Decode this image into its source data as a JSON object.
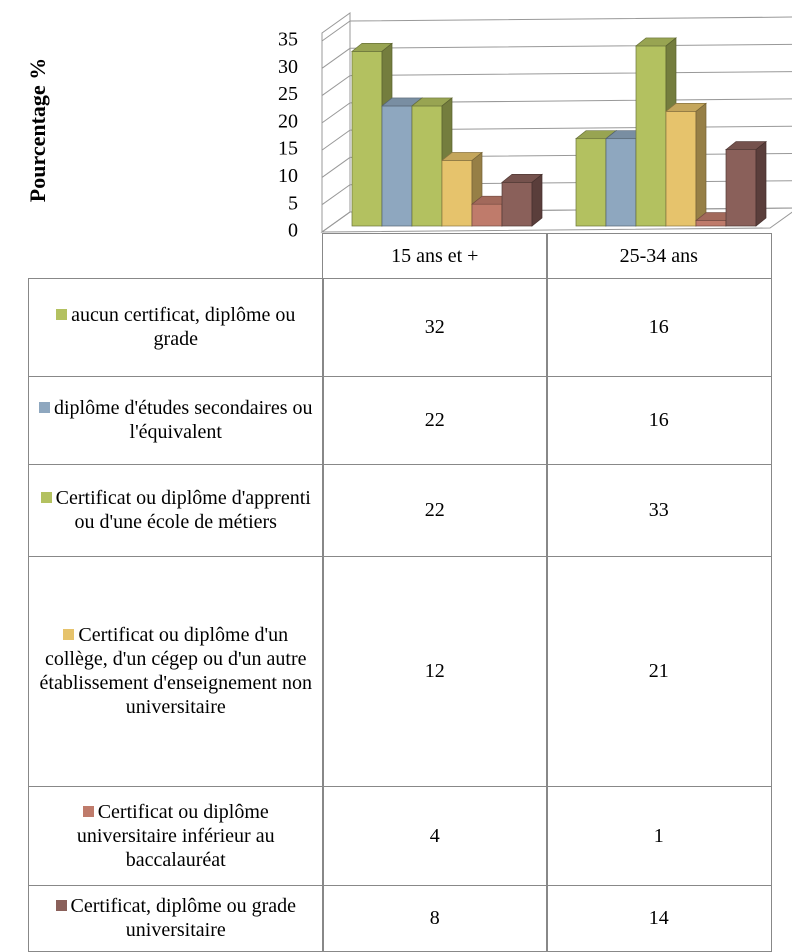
{
  "chart_data": {
    "type": "bar3d",
    "y_label": "Pourcentage %",
    "categories": [
      "15 ans et +",
      "25-34 ans"
    ],
    "series": [
      {
        "name": "aucun certificat, diplôme ou grade",
        "color": "#b3c160",
        "values": [
          32,
          16
        ]
      },
      {
        "name": "diplôme d'études secondaires ou l'équivalent",
        "color": "#8ea7bf",
        "values": [
          22,
          16
        ]
      },
      {
        "name": "Certificat ou diplôme d'apprenti ou d'une école de métiers",
        "color": "#b3c160",
        "values": [
          22,
          33
        ]
      },
      {
        "name": "Certificat ou diplôme d'un collège, d'un cégep ou d'un autre établissement d'enseignement non universitaire",
        "color": "#e6c36c",
        "values": [
          12,
          21
        ]
      },
      {
        "name": "Certificat ou diplôme universitaire inférieur au baccalauréat",
        "color": "#bf7b6b",
        "values": [
          4,
          1
        ]
      },
      {
        "name": "Certificat, diplôme ou grade universitaire",
        "color": "#8a605a",
        "values": [
          8,
          14
        ]
      }
    ],
    "ylim": [
      0,
      35
    ],
    "yticks": [
      0,
      5,
      10,
      15,
      20,
      25,
      30,
      35
    ],
    "grid": true
  }
}
